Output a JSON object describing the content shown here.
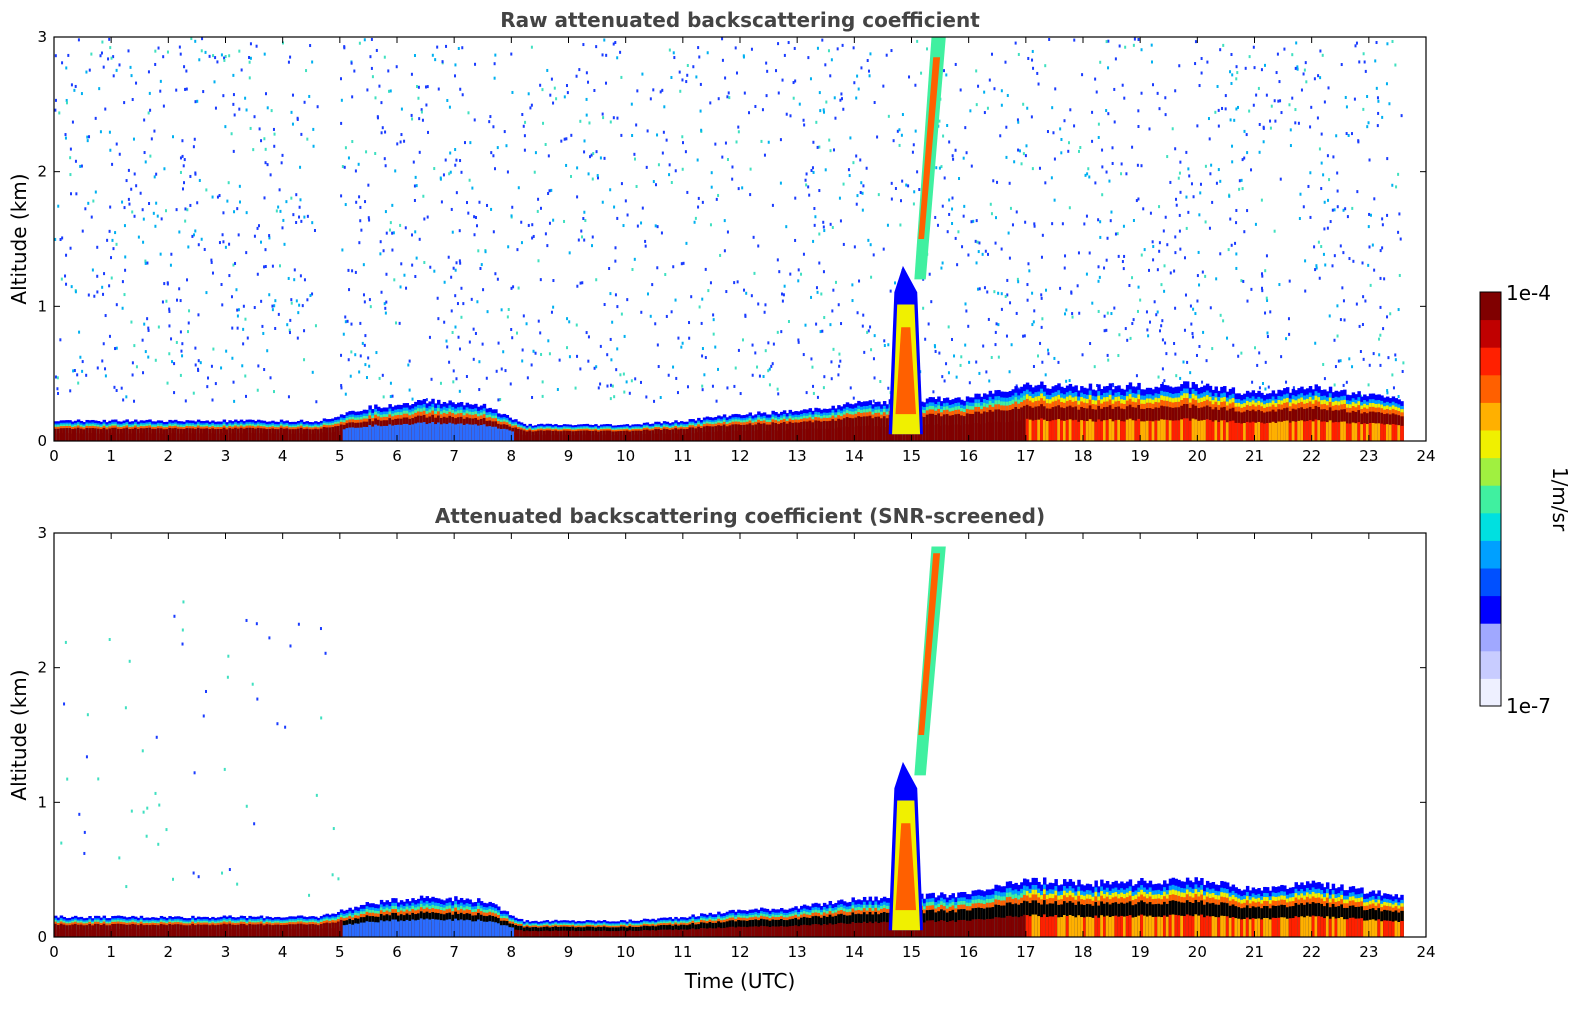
{
  "chart_data": [
    {
      "type": "heatmap",
      "title": "Raw attenuated backscattering coefficient",
      "xlabel": "",
      "ylabel": "Altitude (km)",
      "xlim": [
        0,
        24
      ],
      "ylim": [
        0,
        3
      ],
      "xticks": [
        "0",
        "1",
        "2",
        "3",
        "4",
        "5",
        "6",
        "7",
        "8",
        "9",
        "10",
        "11",
        "12",
        "13",
        "14",
        "15",
        "16",
        "17",
        "18",
        "19",
        "20",
        "21",
        "22",
        "23",
        "24"
      ],
      "yticks": [
        "0",
        "1",
        "2",
        "3"
      ],
      "data_end_hour": 23.6,
      "features": {
        "boundary_layer_top_km": [
          [
            0,
            0.15
          ],
          [
            4.6,
            0.15
          ],
          [
            5.5,
            0.25
          ],
          [
            6.5,
            0.3
          ],
          [
            7.5,
            0.27
          ],
          [
            8.2,
            0.12
          ],
          [
            10,
            0.12
          ],
          [
            11,
            0.15
          ],
          [
            12,
            0.2
          ],
          [
            13,
            0.22
          ],
          [
            14,
            0.28
          ],
          [
            16,
            0.32
          ],
          [
            17,
            0.42
          ],
          [
            18,
            0.4
          ],
          [
            20,
            0.42
          ],
          [
            21,
            0.35
          ],
          [
            22,
            0.4
          ],
          [
            23.6,
            0.3
          ]
        ],
        "convective_plume": {
          "start_hour": 14.6,
          "end_hour": 15.2,
          "top_km": 1.3,
          "elevated_layer_top_km": 3.0
        },
        "noise_level": "raw"
      }
    },
    {
      "type": "heatmap",
      "title": "Attenuated backscattering coefficient (SNR-screened)",
      "xlabel": "Time (UTC)",
      "ylabel": "Altitude (km)",
      "xlim": [
        0,
        24
      ],
      "ylim": [
        0,
        3
      ],
      "xticks": [
        "0",
        "1",
        "2",
        "3",
        "4",
        "5",
        "6",
        "7",
        "8",
        "9",
        "10",
        "11",
        "12",
        "13",
        "14",
        "15",
        "16",
        "17",
        "18",
        "19",
        "20",
        "21",
        "22",
        "23",
        "24"
      ],
      "yticks": [
        "0",
        "1",
        "2",
        "3"
      ],
      "data_end_hour": 23.6,
      "features": {
        "boundary_layer_top_km": [
          [
            0,
            0.15
          ],
          [
            4.6,
            0.15
          ],
          [
            5.5,
            0.25
          ],
          [
            6.5,
            0.3
          ],
          [
            7.5,
            0.27
          ],
          [
            8.2,
            0.12
          ],
          [
            10,
            0.12
          ],
          [
            11,
            0.15
          ],
          [
            12,
            0.2
          ],
          [
            13,
            0.22
          ],
          [
            14,
            0.28
          ],
          [
            16,
            0.32
          ],
          [
            17,
            0.42
          ],
          [
            18,
            0.4
          ],
          [
            20,
            0.42
          ],
          [
            21,
            0.35
          ],
          [
            22,
            0.4
          ],
          [
            23.6,
            0.3
          ]
        ],
        "convective_plume": {
          "start_hour": 14.6,
          "end_hour": 15.2,
          "top_km": 1.3,
          "elevated_layer_top_km": 2.9
        },
        "noise_level": "screened"
      }
    }
  ],
  "colorbar": {
    "label": "1/m/sr",
    "max_label": "1e-4",
    "min_label": "1e-7",
    "colors": [
      "#eef0ff",
      "#c8ccff",
      "#a0a8ff",
      "#0000ff",
      "#0050ff",
      "#00a0ff",
      "#00e0e0",
      "#40f0a0",
      "#a0f040",
      "#f0f000",
      "#ffb000",
      "#ff6000",
      "#ff2000",
      "#c00000",
      "#800000"
    ]
  }
}
